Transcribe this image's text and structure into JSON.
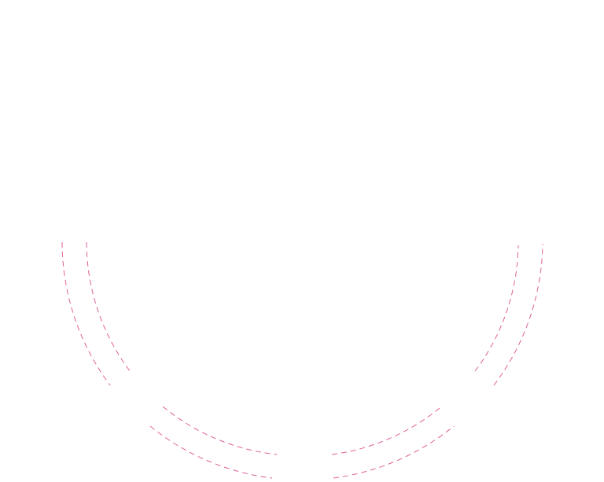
{
  "colors": {
    "arc_stroke": "#e0609a",
    "background": "#ffffff"
  }
}
